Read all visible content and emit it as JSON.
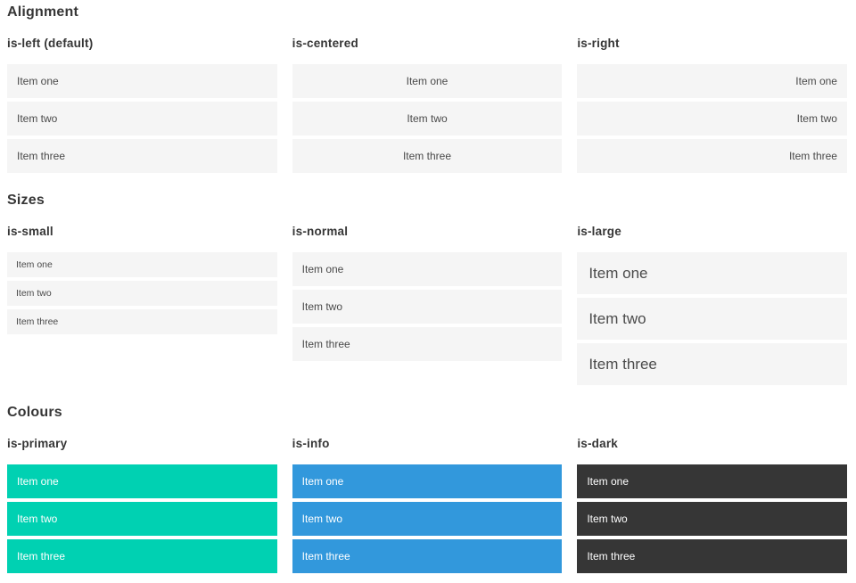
{
  "colors": {
    "primary": "#00d1b2",
    "info": "#3298dc",
    "dark": "#363636",
    "item_background": "#f5f5f5",
    "item_text": "#4a4a4a",
    "heading_text": "#363636",
    "page_background": "#ffffff"
  },
  "sections": [
    {
      "title": "Alignment",
      "groups": [
        {
          "label": "is-left (default)",
          "items": [
            "Item one",
            "Item two",
            "Item three"
          ]
        },
        {
          "label": "is-centered",
          "items": [
            "Item one",
            "Item two",
            "Item three"
          ]
        },
        {
          "label": "is-right",
          "items": [
            "Item one",
            "Item two",
            "Item three"
          ]
        }
      ]
    },
    {
      "title": "Sizes",
      "groups": [
        {
          "label": "is-small",
          "items": [
            "Item one",
            "Item two",
            "Item three"
          ]
        },
        {
          "label": "is-normal",
          "items": [
            "Item one",
            "Item two",
            "Item three"
          ]
        },
        {
          "label": "is-large",
          "items": [
            "Item one",
            "Item two",
            "Item three"
          ]
        }
      ]
    },
    {
      "title": "Colours",
      "groups": [
        {
          "label": "is-primary",
          "items": [
            "Item one",
            "Item two",
            "Item three"
          ]
        },
        {
          "label": "is-info",
          "items": [
            "Item one",
            "Item two",
            "Item three"
          ]
        },
        {
          "label": "is-dark",
          "items": [
            "Item one",
            "Item two",
            "Item three"
          ]
        }
      ]
    }
  ]
}
